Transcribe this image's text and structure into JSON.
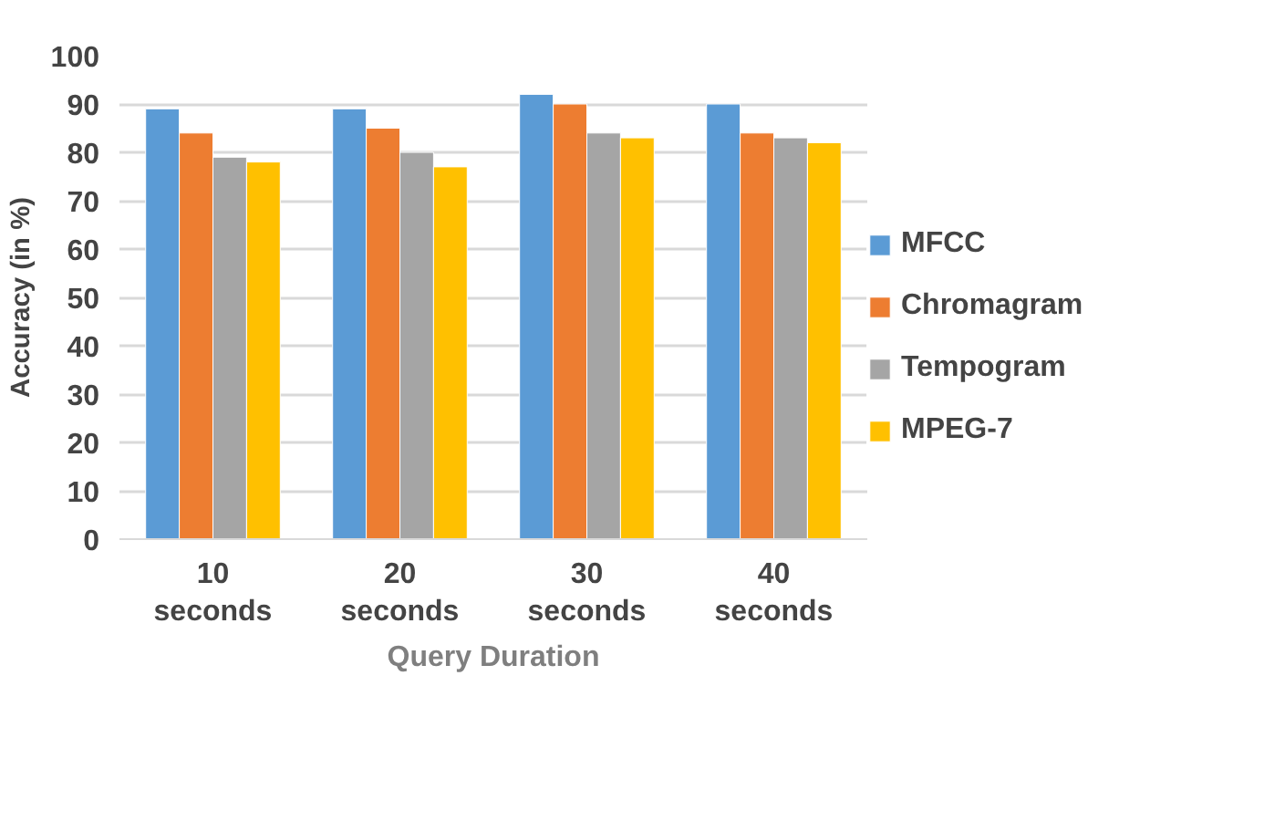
{
  "chart_data": {
    "type": "bar",
    "categories": [
      "10 seconds",
      "20 seconds",
      "30 seconds",
      "40 seconds"
    ],
    "series": [
      {
        "name": "MFCC",
        "color": "#5b9bd5",
        "values": [
          89,
          89,
          92,
          90
        ]
      },
      {
        "name": "Chromagram",
        "color": "#ed7d31",
        "values": [
          84,
          85,
          90,
          84
        ]
      },
      {
        "name": "Tempogram",
        "color": "#a5a5a5",
        "values": [
          79,
          80,
          84,
          83
        ]
      },
      {
        "name": "MPEG-7",
        "color": "#ffc000",
        "values": [
          78,
          77,
          83,
          82
        ]
      }
    ],
    "xlabel": "Query Duration",
    "ylabel": "Accuracy (in %)",
    "ylim": [
      0,
      100
    ],
    "yticks": [
      0,
      10,
      20,
      30,
      40,
      50,
      60,
      70,
      80,
      90,
      100
    ],
    "grid": "y",
    "legend": "right"
  }
}
